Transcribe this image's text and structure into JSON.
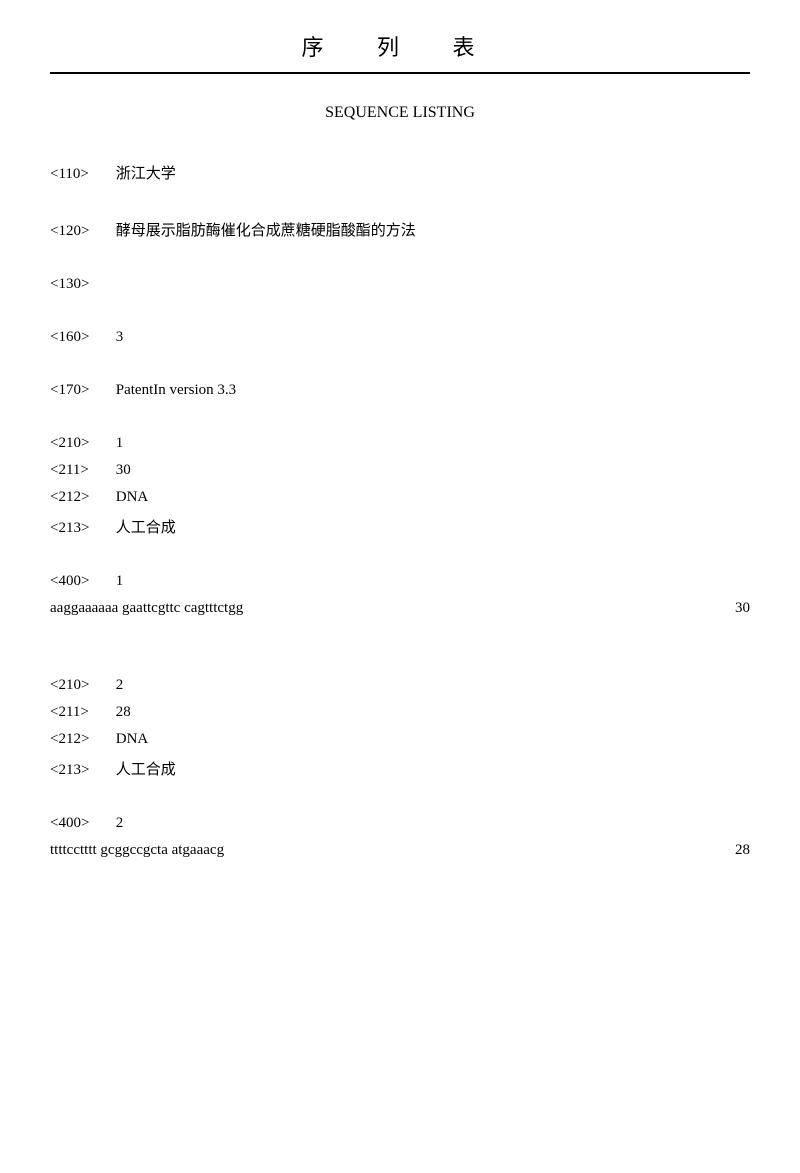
{
  "header": {
    "title_cn": "序 列 表",
    "subtitle_en": "SEQUENCE LISTING"
  },
  "meta": {
    "110": {
      "tag": "<110>",
      "value": "浙江大学"
    },
    "120": {
      "tag": "<120>",
      "value": "酵母展示脂肪酶催化合成蔗糖硬脂酸酯的方法"
    },
    "130": {
      "tag": "<130>",
      "value": ""
    },
    "160": {
      "tag": "<160>",
      "value": "3"
    },
    "170": {
      "tag": "<170>",
      "value": "PatentIn version 3.3"
    }
  },
  "seq1": {
    "210": {
      "tag": "<210>",
      "value": "1"
    },
    "211": {
      "tag": "<211>",
      "value": "30"
    },
    "212": {
      "tag": "<212>",
      "value": "DNA"
    },
    "213": {
      "tag": "<213>",
      "value": "人工合成"
    },
    "400": {
      "tag": "<400>",
      "value": "1"
    },
    "sequence": "aaggaaaaaa gaattcgttc cagtttctgg",
    "length": "30"
  },
  "seq2": {
    "210": {
      "tag": "<210>",
      "value": "2"
    },
    "211": {
      "tag": "<211>",
      "value": "28"
    },
    "212": {
      "tag": "<212>",
      "value": "DNA"
    },
    "213": {
      "tag": "<213>",
      "value": "人工合成"
    },
    "400": {
      "tag": "<400>",
      "value": "2"
    },
    "sequence": "ttttcctttt gcggccgcta atgaaacg",
    "length": "28"
  }
}
